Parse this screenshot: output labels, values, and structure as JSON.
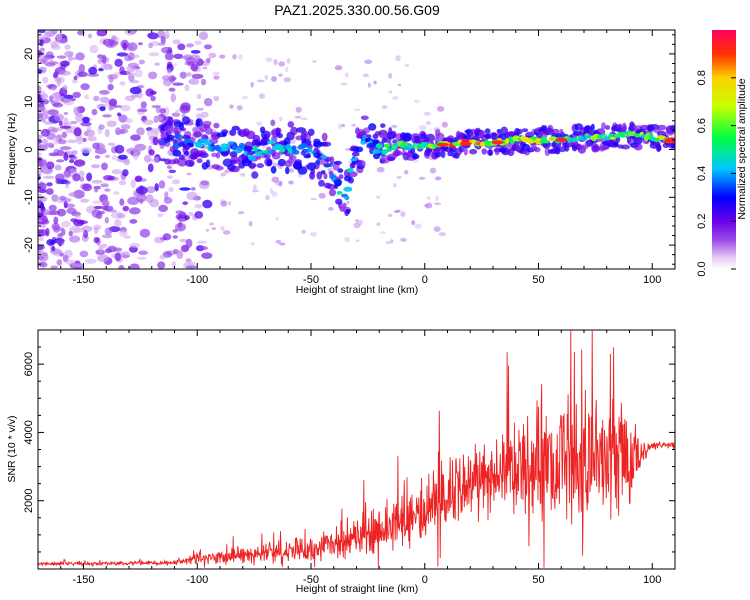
{
  "chart_data": [
    {
      "type": "heatmap",
      "title": "PAZ1.2025.330.00.56.G09",
      "xlabel": "Height of straight line (km)",
      "ylabel": "Frequency (Hz)",
      "xlim": [
        -170,
        110
      ],
      "ylim": [
        -25,
        25
      ],
      "xticks": [
        -150,
        -100,
        -50,
        0,
        50,
        100
      ],
      "yticks": [
        -20,
        -10,
        0,
        10,
        20
      ],
      "colorbar": {
        "label": "Normalized spectral amplitude",
        "range": [
          0,
          1
        ],
        "ticks": [
          "0.0",
          "0.2",
          "0.4",
          "0.6",
          "0.8"
        ],
        "colors": [
          "#ffffff",
          "#e4c8f4",
          "#9a4ce8",
          "#6a00e8",
          "#0000ff",
          "#00c8ff",
          "#00ff40",
          "#c8ff00",
          "#ffd000",
          "#ff3000",
          "#ff0060"
        ]
      },
      "ridge": {
        "x": [
          -115,
          -105,
          -95,
          -85,
          -75,
          -65,
          -55,
          -45,
          -40,
          -35,
          -30,
          -25,
          -20,
          -15,
          -10,
          -5,
          0,
          10,
          20,
          30,
          40,
          50,
          60,
          70,
          80,
          90,
          100,
          110
        ],
        "f": [
          2.5,
          1.5,
          1,
          0.5,
          -1,
          1,
          0,
          -2,
          -5,
          -11,
          0,
          2,
          0,
          0.5,
          1,
          0.5,
          1,
          1,
          1.5,
          1.5,
          2,
          2,
          2,
          2.5,
          2.5,
          3,
          2.5,
          2
        ],
        "amp": [
          0.3,
          0.35,
          0.4,
          0.35,
          0.4,
          0.45,
          0.35,
          0.35,
          0.4,
          0.45,
          0.35,
          0.4,
          0.45,
          0.55,
          0.6,
          0.55,
          0.6,
          0.75,
          0.9,
          0.7,
          0.65,
          0.7,
          0.6,
          0.55,
          0.6,
          0.55,
          0.6,
          0.95
        ]
      }
    },
    {
      "type": "line",
      "xlabel": "Height of straight line (km)",
      "ylabel": "SNR (10 * v/v)",
      "xlim": [
        -170,
        110
      ],
      "ylim": [
        0,
        7000
      ],
      "xticks": [
        -150,
        -100,
        -50,
        0,
        50,
        100
      ],
      "yticks": [
        2000,
        4000,
        6000
      ],
      "series": [
        {
          "name": "SNR",
          "color": "#ee2222",
          "envelope_x": [
            -170,
            -140,
            -120,
            -110,
            -100,
            -90,
            -80,
            -70,
            -60,
            -50,
            -40,
            -30,
            -20,
            -10,
            0,
            10,
            20,
            30,
            40,
            50,
            60,
            70,
            80,
            90,
            95,
            100,
            110
          ],
          "envelope_mean": [
            150,
            160,
            170,
            190,
            300,
            350,
            420,
            450,
            520,
            600,
            700,
            900,
            1100,
            1500,
            1800,
            2200,
            2500,
            2700,
            3000,
            3100,
            3200,
            3300,
            3300,
            3200,
            3400,
            3600,
            3650
          ],
          "envelope_spread": [
            60,
            60,
            70,
            80,
            200,
            250,
            320,
            350,
            400,
            450,
            550,
            700,
            800,
            1000,
            1100,
            1200,
            1300,
            1400,
            1700,
            2000,
            2100,
            2200,
            2200,
            2100,
            600,
            150,
            100
          ]
        }
      ]
    }
  ]
}
